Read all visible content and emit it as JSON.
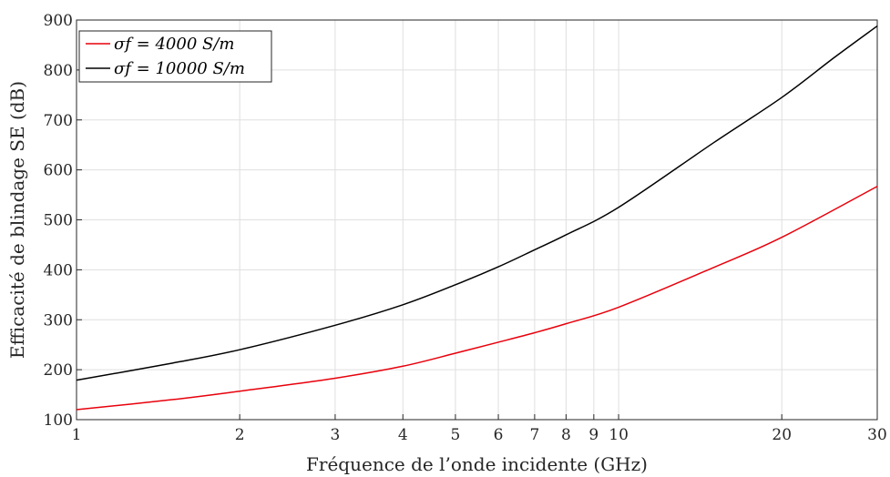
{
  "chart_data": {
    "type": "line",
    "title": "",
    "xlabel": "Fréquence de l’onde incidente (GHz)",
    "ylabel": "Efficacité de blindage SE (dB)",
    "xscale": "log",
    "xlim": [
      1,
      30
    ],
    "ylim": [
      100,
      900
    ],
    "xticks": [
      1,
      2,
      3,
      4,
      5,
      6,
      7,
      8,
      9,
      10,
      20,
      30
    ],
    "xtick_labels": [
      "1",
      "2",
      "3",
      "4",
      "5",
      "6",
      "7",
      "8",
      "9",
      "10",
      "20",
      "30"
    ],
    "yticks": [
      100,
      200,
      300,
      400,
      500,
      600,
      700,
      800,
      900
    ],
    "ytick_labels": [
      "100",
      "200",
      "300",
      "400",
      "500",
      "600",
      "700",
      "800",
      "900"
    ],
    "grid": true,
    "legend_position": "top-left",
    "series": [
      {
        "name": "σf = 4000 S/m",
        "color": "#e8000b",
        "x": [
          1,
          1.5,
          2,
          3,
          4,
          5,
          6,
          7,
          8,
          10,
          15,
          20,
          30
        ],
        "y": [
          120,
          140,
          157,
          183,
          207,
          233,
          255,
          274,
          292,
          325,
          405,
          465,
          567
        ]
      },
      {
        "name": "σf = 10000 S/m",
        "color": "#000000",
        "x": [
          1,
          1.5,
          2,
          3,
          4,
          5,
          6,
          7,
          8,
          10,
          15,
          20,
          25,
          30
        ],
        "y": [
          179,
          213,
          240,
          289,
          330,
          370,
          406,
          440,
          470,
          525,
          655,
          745,
          825,
          888
        ]
      }
    ]
  }
}
